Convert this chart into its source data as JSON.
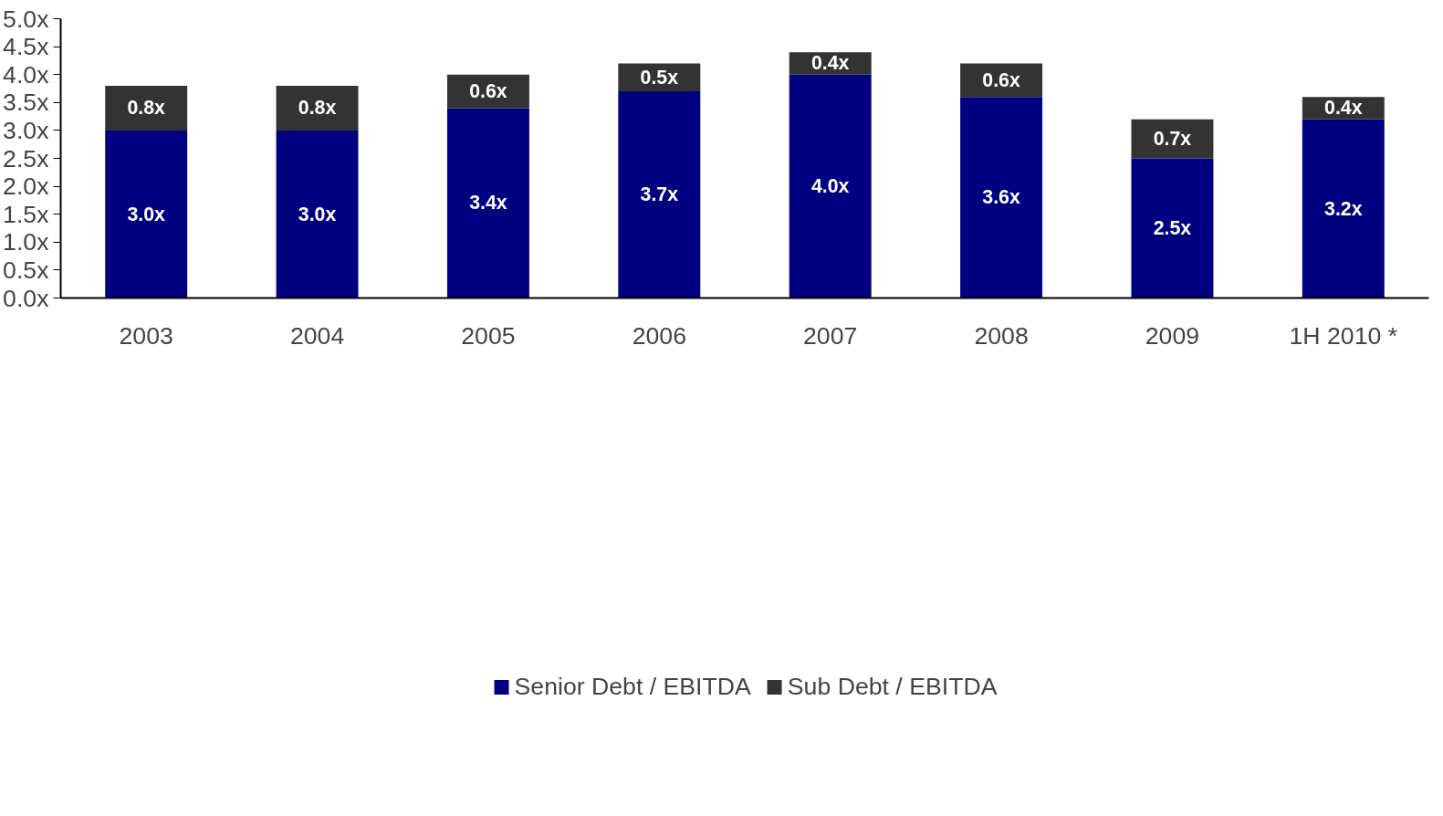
{
  "chart_data": {
    "type": "bar",
    "stacked": true,
    "categories": [
      "2003",
      "2004",
      "2005",
      "2006",
      "2007",
      "2008",
      "2009",
      "1H 2010 *"
    ],
    "series": [
      {
        "name": "Senior Debt / EBITDA",
        "color": "#000080",
        "values": [
          3.0,
          3.0,
          3.4,
          3.7,
          4.0,
          3.6,
          2.5,
          3.2
        ],
        "value_labels": [
          "3.0x",
          "3.0x",
          "3.4x",
          "3.7x",
          "4.0x",
          "3.6x",
          "2.5x",
          "3.2x"
        ]
      },
      {
        "name": "Sub Debt / EBITDA",
        "color": "#333333",
        "values": [
          0.8,
          0.8,
          0.6,
          0.5,
          0.4,
          0.6,
          0.7,
          0.4
        ],
        "value_labels": [
          "0.8x",
          "0.8x",
          "0.6x",
          "0.5x",
          "0.4x",
          "0.6x",
          "0.7x",
          "0.4x"
        ]
      }
    ],
    "ylim": [
      0,
      5
    ],
    "yticks": [
      {
        "value": 0,
        "label": "0.0x"
      },
      {
        "value": 0.5,
        "label": "0.5x"
      },
      {
        "value": 1,
        "label": "1.0x"
      },
      {
        "value": 1.5,
        "label": "1.5x"
      },
      {
        "value": 2,
        "label": "2.0x"
      },
      {
        "value": 2.5,
        "label": "2.5x"
      },
      {
        "value": 3,
        "label": "3.0x"
      },
      {
        "value": 3.5,
        "label": "3.5x"
      },
      {
        "value": 4,
        "label": "4.0x"
      },
      {
        "value": 4.5,
        "label": "4.5x"
      },
      {
        "value": 5,
        "label": "5.0x"
      }
    ],
    "legend": "bottom"
  }
}
